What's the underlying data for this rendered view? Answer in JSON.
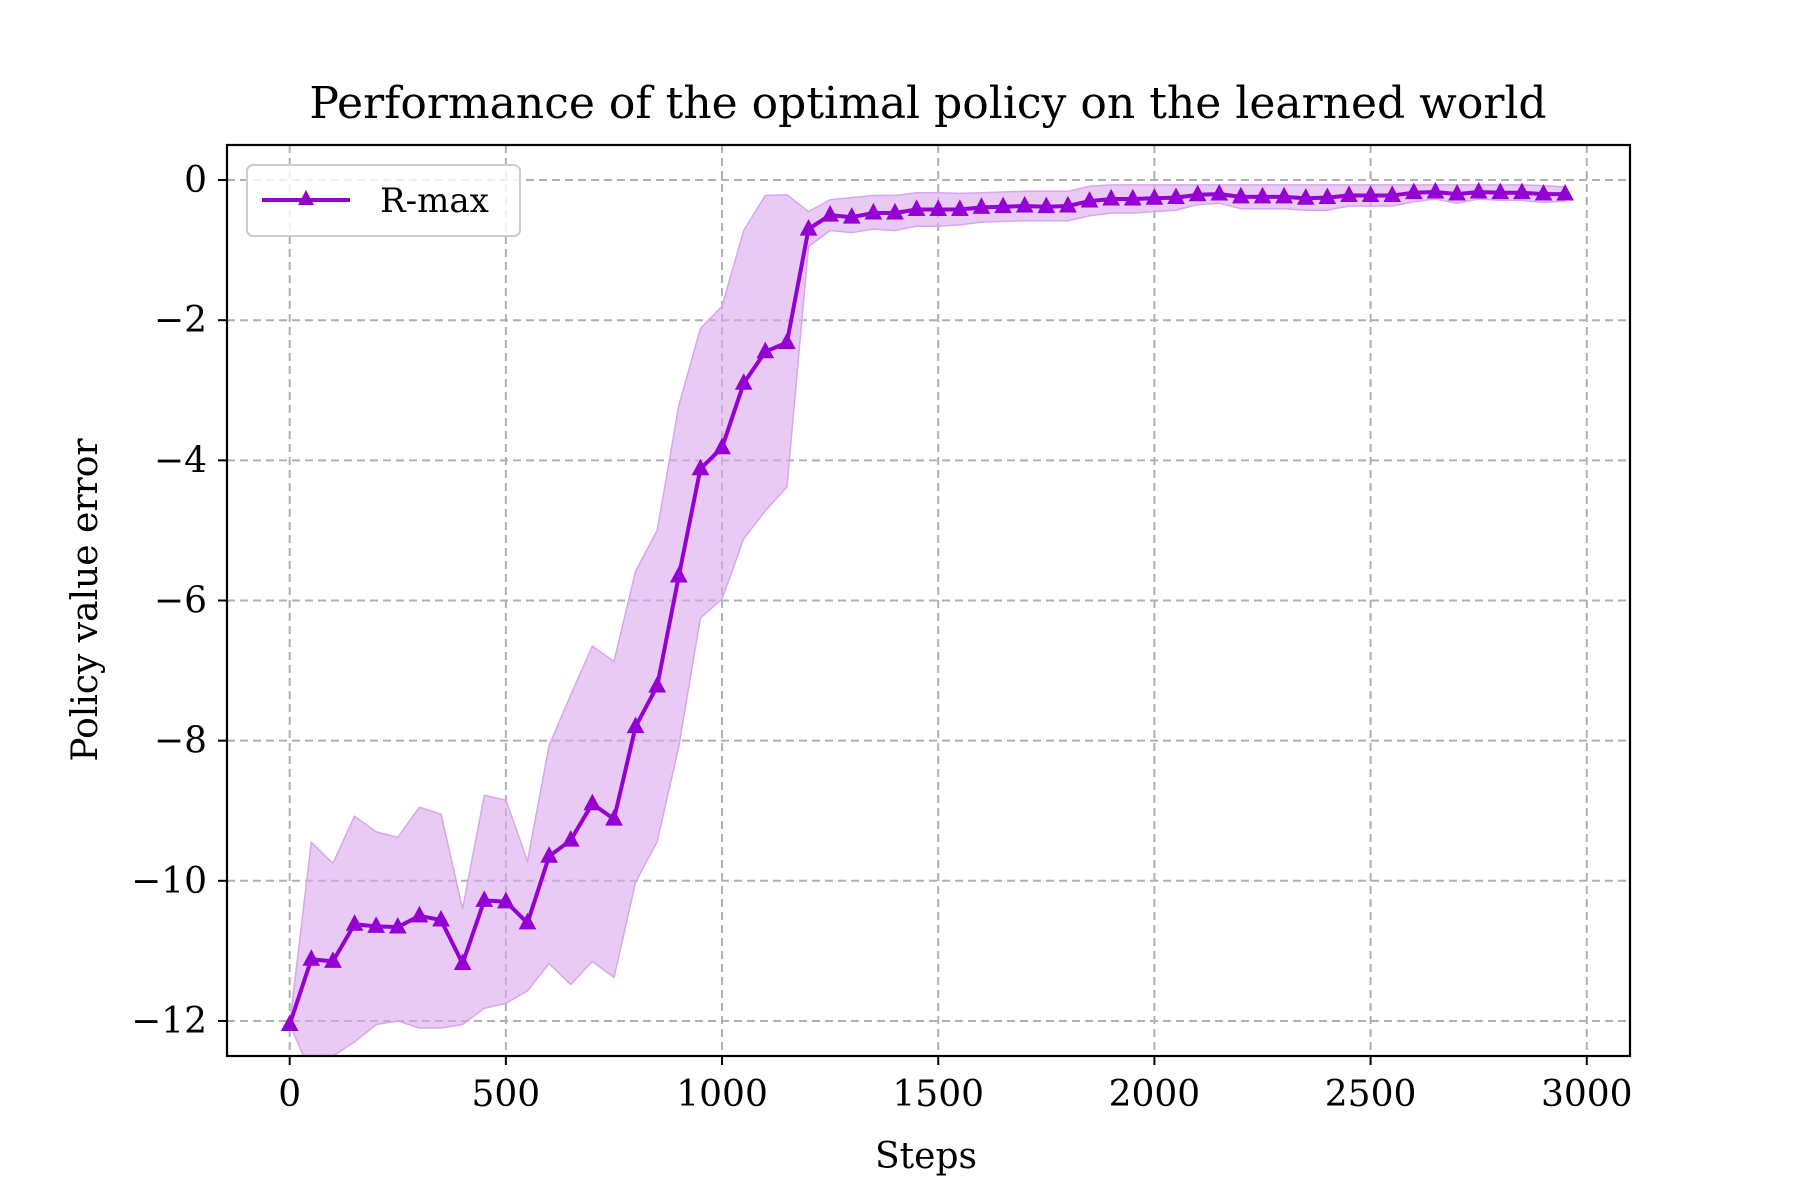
{
  "chart_data": {
    "type": "line",
    "title": "Performance of the optimal policy on the learned world",
    "xlabel": "Steps",
    "ylabel": "Policy value error",
    "xlim": [
      -145,
      3100
    ],
    "ylim": [
      -12.5,
      0.5
    ],
    "xticks": [
      0,
      500,
      1000,
      1500,
      2000,
      2500,
      3000
    ],
    "xtick_labels": [
      "0",
      "500",
      "1000",
      "1500",
      "2000",
      "2500",
      "3000"
    ],
    "yticks": [
      0,
      -2,
      -4,
      -6,
      -8,
      -10,
      -12
    ],
    "ytick_labels": [
      "0",
      "−2",
      "−4",
      "−6",
      "−8",
      "−10",
      "−12"
    ],
    "grid": true,
    "legend_position": "top-left",
    "series": [
      {
        "name": "R-max",
        "color": "#9400D3",
        "band_color": "#D9A6EC",
        "marker": "triangle-up",
        "x": [
          0,
          50,
          100,
          150,
          200,
          250,
          300,
          350,
          400,
          450,
          500,
          550,
          600,
          650,
          700,
          750,
          800,
          850,
          900,
          950,
          1000,
          1050,
          1100,
          1150,
          1200,
          1250,
          1300,
          1350,
          1400,
          1450,
          1500,
          1550,
          1600,
          1650,
          1700,
          1750,
          1800,
          1850,
          1900,
          1950,
          2000,
          2050,
          2100,
          2150,
          2200,
          2250,
          2300,
          2350,
          2400,
          2450,
          2500,
          2550,
          2600,
          2650,
          2700,
          2750,
          2800,
          2850,
          2900,
          2950
        ],
        "y": [
          -12.05,
          -11.12,
          -11.15,
          -10.62,
          -10.65,
          -10.66,
          -10.5,
          -10.56,
          -11.18,
          -10.28,
          -10.3,
          -10.6,
          -9.65,
          -9.42,
          -8.9,
          -9.12,
          -7.8,
          -7.22,
          -5.65,
          -4.12,
          -3.82,
          -2.9,
          -2.45,
          -2.32,
          -0.7,
          -0.5,
          -0.53,
          -0.47,
          -0.47,
          -0.42,
          -0.42,
          -0.42,
          -0.39,
          -0.38,
          -0.37,
          -0.38,
          -0.37,
          -0.3,
          -0.27,
          -0.27,
          -0.26,
          -0.25,
          -0.21,
          -0.2,
          -0.24,
          -0.24,
          -0.24,
          -0.26,
          -0.25,
          -0.22,
          -0.22,
          -0.22,
          -0.18,
          -0.17,
          -0.2,
          -0.17,
          -0.18,
          -0.18,
          -0.2,
          -0.2
        ],
        "upper": [
          -12.05,
          -9.45,
          -9.75,
          -9.08,
          -9.3,
          -9.38,
          -8.95,
          -9.05,
          -10.4,
          -8.78,
          -8.85,
          -9.72,
          -8.07,
          -7.35,
          -6.65,
          -6.87,
          -5.58,
          -5.0,
          -3.22,
          -2.12,
          -1.8,
          -0.72,
          -0.22,
          -0.21,
          -0.45,
          -0.28,
          -0.25,
          -0.22,
          -0.22,
          -0.18,
          -0.18,
          -0.19,
          -0.18,
          -0.17,
          -0.16,
          -0.16,
          -0.16,
          -0.09,
          -0.07,
          -0.07,
          -0.07,
          -0.07,
          -0.07,
          -0.07,
          -0.07,
          -0.07,
          -0.07,
          -0.07,
          -0.07,
          -0.07,
          -0.07,
          -0.07,
          -0.07,
          -0.07,
          -0.07,
          -0.07,
          -0.07,
          -0.07,
          -0.08,
          -0.1
        ],
        "lower": [
          -12.05,
          -12.75,
          -12.5,
          -12.3,
          -12.05,
          -12.0,
          -12.1,
          -12.1,
          -12.05,
          -11.82,
          -11.75,
          -11.57,
          -11.18,
          -11.48,
          -11.15,
          -11.38,
          -10.02,
          -9.44,
          -8.08,
          -6.25,
          -5.98,
          -5.12,
          -4.72,
          -4.38,
          -0.95,
          -0.72,
          -0.75,
          -0.7,
          -0.72,
          -0.66,
          -0.66,
          -0.64,
          -0.6,
          -0.59,
          -0.58,
          -0.58,
          -0.58,
          -0.51,
          -0.47,
          -0.47,
          -0.45,
          -0.43,
          -0.35,
          -0.33,
          -0.41,
          -0.41,
          -0.41,
          -0.43,
          -0.43,
          -0.37,
          -0.37,
          -0.37,
          -0.31,
          -0.27,
          -0.33,
          -0.27,
          -0.29,
          -0.29,
          -0.32,
          -0.3
        ]
      }
    ]
  }
}
